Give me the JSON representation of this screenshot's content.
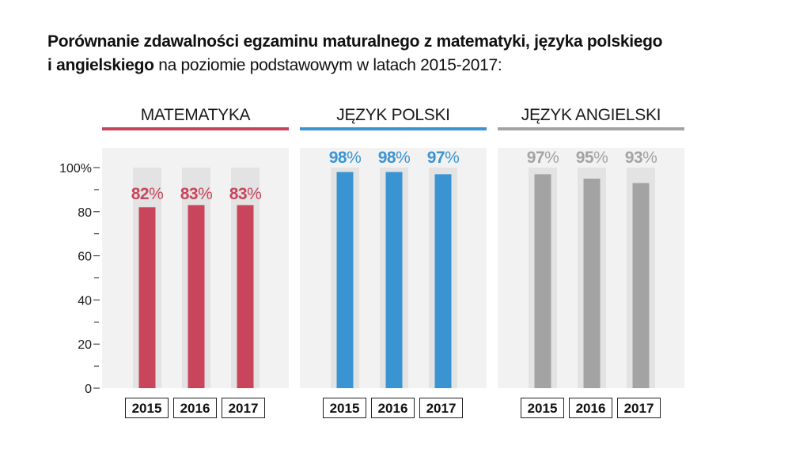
{
  "title": {
    "bold_part_1": "Porównanie zdawalności egzaminu maturalnego z matematyki, języka polskiego",
    "bold_part_2": "i angielskiego",
    "normal_part": " na poziomie podstawowym w latach 2015-2017:"
  },
  "chart_data": {
    "type": "bar",
    "ylim": [
      0,
      100
    ],
    "y_ticks": [
      "0",
      "20",
      "40",
      "60",
      "80",
      "100%"
    ],
    "y_tick_values": [
      0,
      20,
      40,
      60,
      80,
      100
    ],
    "y_minor_ticks": [
      10,
      30,
      50,
      70,
      90
    ],
    "grid": false,
    "panels": [
      {
        "title": "MATEMATYKA",
        "color": "#c8455c",
        "categories": [
          "2015",
          "2016",
          "2017"
        ],
        "values": [
          82,
          83,
          83
        ],
        "labels": [
          "82",
          "83",
          "83"
        ]
      },
      {
        "title": "JĘZYK POLSKI",
        "color": "#3b94d2",
        "categories": [
          "2015",
          "2016",
          "2017"
        ],
        "values": [
          98,
          98,
          97
        ],
        "labels": [
          "98",
          "98",
          "97"
        ]
      },
      {
        "title": "JĘZYK ANGIELSKI",
        "color": "#a3a3a3",
        "categories": [
          "2015",
          "2016",
          "2017"
        ],
        "values": [
          97,
          95,
          93
        ],
        "labels": [
          "97",
          "95",
          "93"
        ]
      }
    ],
    "percent_sign": "%"
  },
  "colors": {
    "panel_background": "#f2f2f2",
    "bar_track": "#e3e3e3"
  }
}
